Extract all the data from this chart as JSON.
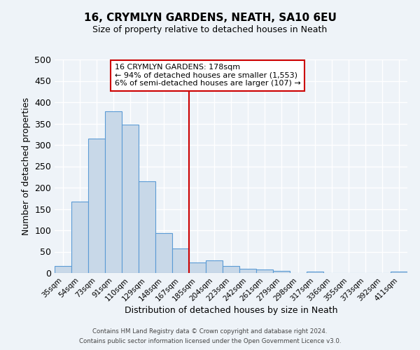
{
  "title": "16, CRYMLYN GARDENS, NEATH, SA10 6EU",
  "subtitle": "Size of property relative to detached houses in Neath",
  "xlabel": "Distribution of detached houses by size in Neath",
  "ylabel": "Number of detached properties",
  "bar_color": "#c8d8e8",
  "bar_edge_color": "#5b9bd5",
  "bg_color": "#eef3f8",
  "grid_color": "#ffffff",
  "categories": [
    "35sqm",
    "54sqm",
    "73sqm",
    "91sqm",
    "110sqm",
    "129sqm",
    "148sqm",
    "167sqm",
    "185sqm",
    "204sqm",
    "223sqm",
    "242sqm",
    "261sqm",
    "279sqm",
    "298sqm",
    "317sqm",
    "336sqm",
    "355sqm",
    "373sqm",
    "392sqm",
    "411sqm"
  ],
  "values": [
    17,
    167,
    314,
    378,
    347,
    215,
    94,
    57,
    25,
    29,
    16,
    10,
    9,
    5,
    0,
    3,
    0,
    0,
    0,
    0,
    4
  ],
  "vline_x": 7.5,
  "vline_color": "#cc0000",
  "annotation_title": "16 CRYMLYN GARDENS: 178sqm",
  "annotation_line1": "← 94% of detached houses are smaller (1,553)",
  "annotation_line2": "6% of semi-detached houses are larger (107) →",
  "annotation_box_color": "#cc0000",
  "ylim": [
    0,
    500
  ],
  "yticks": [
    0,
    50,
    100,
    150,
    200,
    250,
    300,
    350,
    400,
    450,
    500
  ],
  "footer1": "Contains HM Land Registry data © Crown copyright and database right 2024.",
  "footer2": "Contains public sector information licensed under the Open Government Licence v3.0."
}
